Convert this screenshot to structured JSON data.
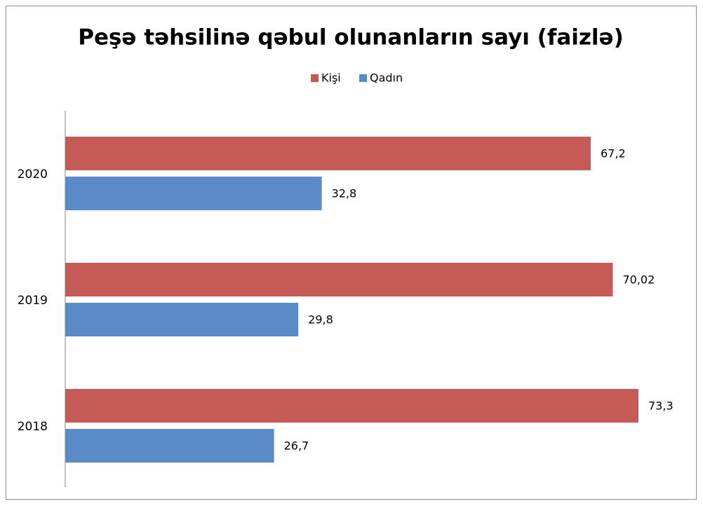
{
  "chart_data": {
    "type": "barh",
    "title": "Peşə təhsilinə qəbul olunanların sayı (faizlə)",
    "categories": [
      "2018",
      "2019",
      "2020"
    ],
    "series": [
      {
        "name": "Kişi",
        "color": "#c55a57",
        "values": [
          73.3,
          70.02,
          67.2
        ],
        "value_labels": [
          "73,3",
          "70,02",
          "67,2"
        ]
      },
      {
        "name": "Qadın",
        "color": "#5b8bc6",
        "values": [
          26.7,
          29.8,
          32.8
        ],
        "value_labels": [
          "26,7",
          "29,8",
          "32,8"
        ]
      }
    ],
    "legend": "top"
  }
}
